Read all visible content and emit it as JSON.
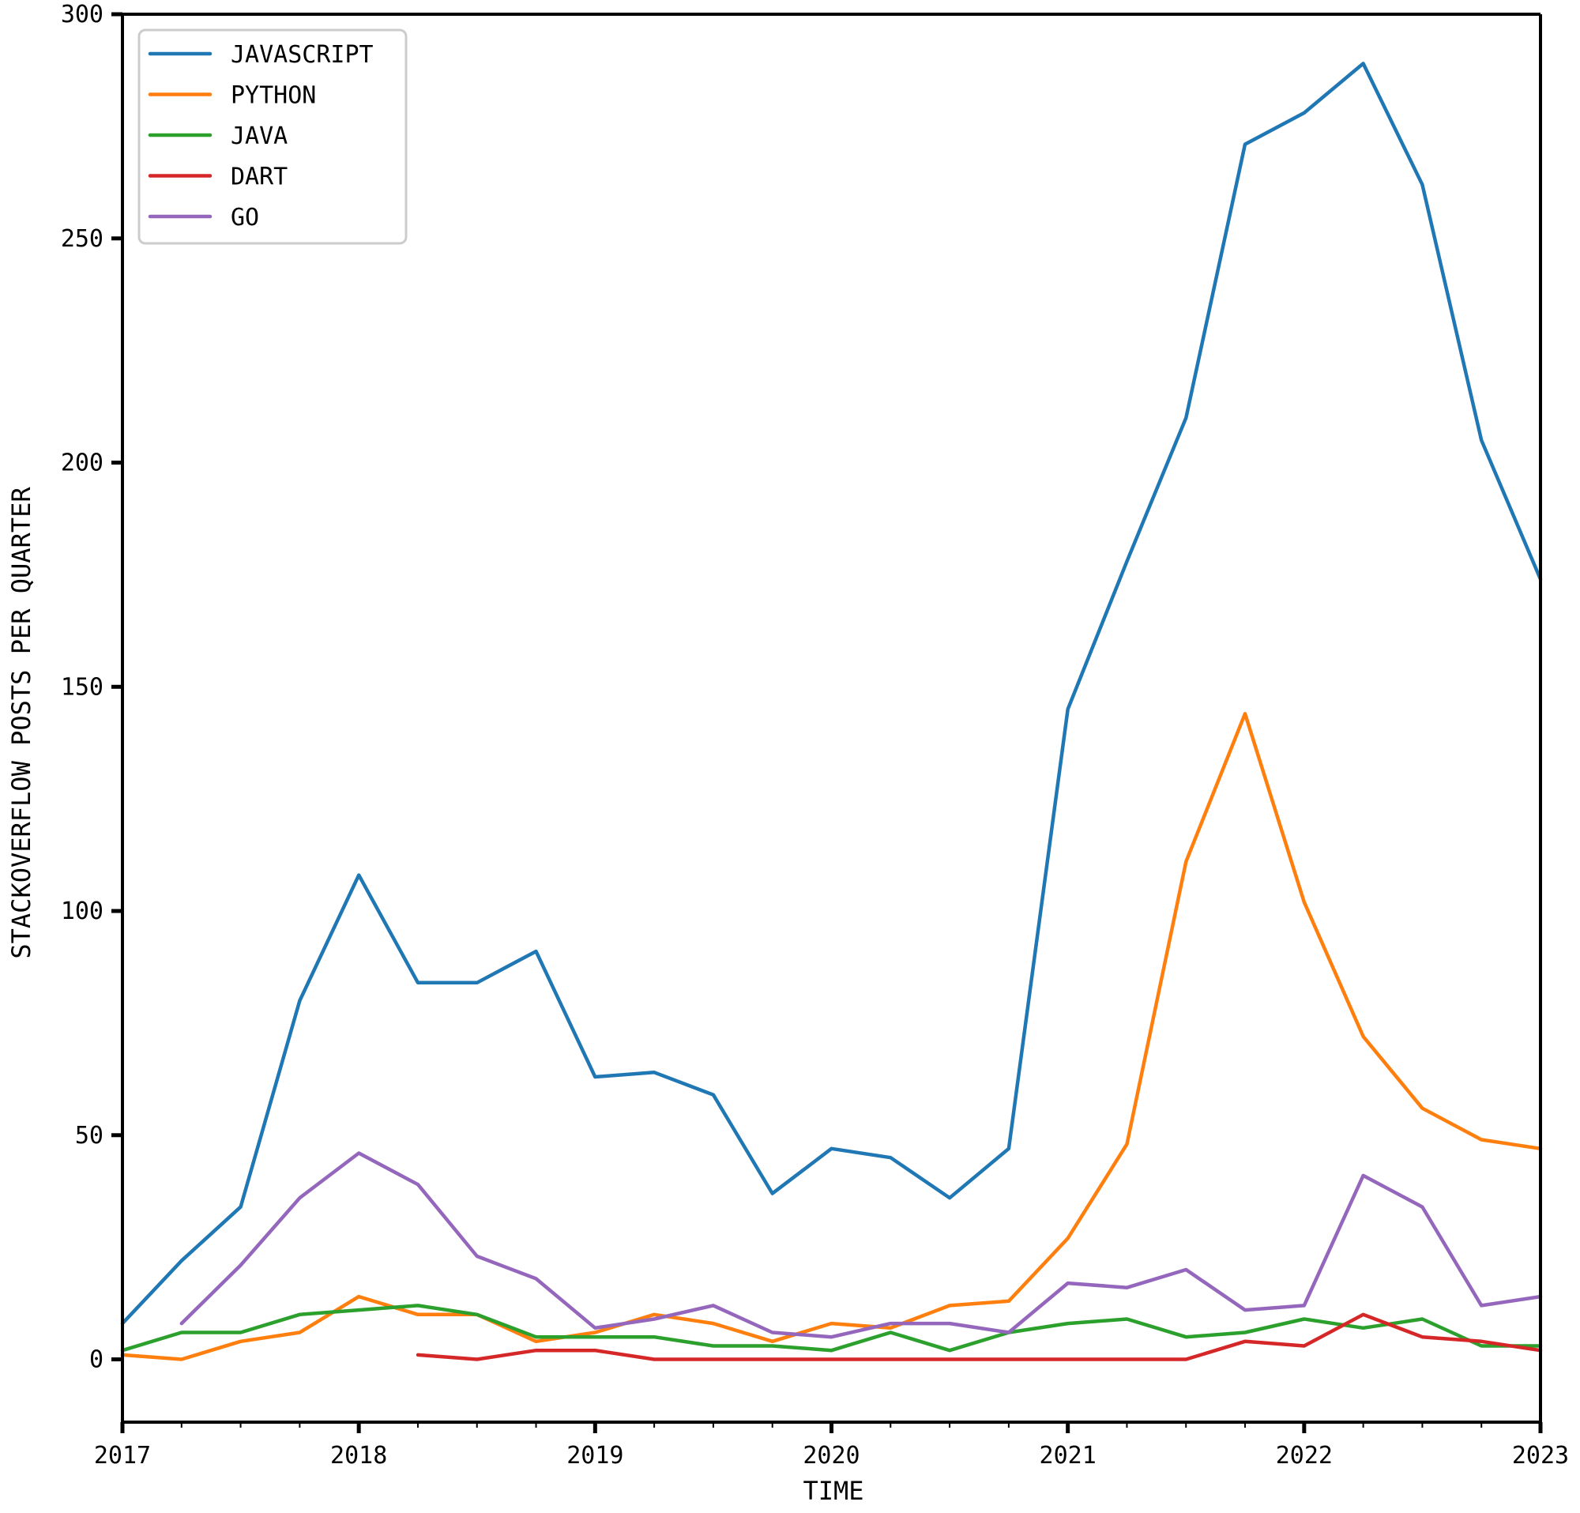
{
  "chart_data": {
    "type": "line",
    "title": "",
    "xlabel": "TIME",
    "ylabel": "STACKOVERFLOW POSTS PER QUARTER",
    "xlim": [
      2017,
      2023
    ],
    "ylim": [
      -14,
      300
    ],
    "x_ticks": [
      2017,
      2018,
      2019,
      2020,
      2021,
      2022,
      2023
    ],
    "y_ticks": [
      0,
      50,
      100,
      150,
      200,
      250,
      300
    ],
    "grid": false,
    "legend_position": "top-left",
    "series": [
      {
        "name": "JAVASCRIPT",
        "color": "#1f77b4",
        "points": [
          [
            2017.0,
            8
          ],
          [
            2017.25,
            22
          ],
          [
            2017.5,
            34
          ],
          [
            2017.75,
            80
          ],
          [
            2018.0,
            108
          ],
          [
            2018.25,
            84
          ],
          [
            2018.5,
            84
          ],
          [
            2018.75,
            91
          ],
          [
            2019.0,
            63
          ],
          [
            2019.25,
            64
          ],
          [
            2019.5,
            59
          ],
          [
            2019.75,
            37
          ],
          [
            2020.0,
            47
          ],
          [
            2020.25,
            45
          ],
          [
            2020.5,
            36
          ],
          [
            2020.75,
            47
          ],
          [
            2021.0,
            145
          ],
          [
            2021.25,
            178
          ],
          [
            2021.5,
            210
          ],
          [
            2021.75,
            271
          ],
          [
            2022.0,
            278
          ],
          [
            2022.25,
            289
          ],
          [
            2022.5,
            262
          ],
          [
            2022.75,
            205
          ],
          [
            2023.0,
            174
          ]
        ]
      },
      {
        "name": "PYTHON",
        "color": "#ff7f0e",
        "points": [
          [
            2017.0,
            1
          ],
          [
            2017.25,
            0
          ],
          [
            2017.5,
            4
          ],
          [
            2017.75,
            6
          ],
          [
            2018.0,
            14
          ],
          [
            2018.25,
            10
          ],
          [
            2018.5,
            10
          ],
          [
            2018.75,
            4
          ],
          [
            2019.0,
            6
          ],
          [
            2019.25,
            10
          ],
          [
            2019.5,
            8
          ],
          [
            2019.75,
            4
          ],
          [
            2020.0,
            8
          ],
          [
            2020.25,
            7
          ],
          [
            2020.5,
            12
          ],
          [
            2020.75,
            13
          ],
          [
            2021.0,
            27
          ],
          [
            2021.25,
            48
          ],
          [
            2021.5,
            111
          ],
          [
            2021.75,
            144
          ],
          [
            2022.0,
            102
          ],
          [
            2022.25,
            72
          ],
          [
            2022.5,
            56
          ],
          [
            2022.75,
            49
          ],
          [
            2023.0,
            47
          ]
        ]
      },
      {
        "name": "JAVA",
        "color": "#2ca02c",
        "points": [
          [
            2017.0,
            2
          ],
          [
            2017.25,
            6
          ],
          [
            2017.5,
            6
          ],
          [
            2017.75,
            10
          ],
          [
            2018.0,
            11
          ],
          [
            2018.25,
            12
          ],
          [
            2018.5,
            10
          ],
          [
            2018.75,
            5
          ],
          [
            2019.0,
            5
          ],
          [
            2019.25,
            5
          ],
          [
            2019.5,
            3
          ],
          [
            2019.75,
            3
          ],
          [
            2020.0,
            2
          ],
          [
            2020.25,
            6
          ],
          [
            2020.5,
            2
          ],
          [
            2020.75,
            6
          ],
          [
            2021.0,
            8
          ],
          [
            2021.25,
            9
          ],
          [
            2021.5,
            5
          ],
          [
            2021.75,
            6
          ],
          [
            2022.0,
            9
          ],
          [
            2022.25,
            7
          ],
          [
            2022.5,
            9
          ],
          [
            2022.75,
            3
          ],
          [
            2023.0,
            3
          ]
        ]
      },
      {
        "name": "DART",
        "color": "#d62728",
        "points": [
          [
            2018.25,
            1
          ],
          [
            2018.5,
            0
          ],
          [
            2018.75,
            2
          ],
          [
            2019.0,
            2
          ],
          [
            2019.25,
            0
          ],
          [
            2019.5,
            0
          ],
          [
            2019.75,
            0
          ],
          [
            2020.0,
            0
          ],
          [
            2020.25,
            0
          ],
          [
            2020.5,
            0
          ],
          [
            2020.75,
            0
          ],
          [
            2021.0,
            0
          ],
          [
            2021.25,
            0
          ],
          [
            2021.5,
            0
          ],
          [
            2021.75,
            4
          ],
          [
            2022.0,
            3
          ],
          [
            2022.25,
            10
          ],
          [
            2022.5,
            5
          ],
          [
            2022.75,
            4
          ],
          [
            2023.0,
            2
          ]
        ]
      },
      {
        "name": "GO",
        "color": "#9467bd",
        "points": [
          [
            2017.25,
            8
          ],
          [
            2017.5,
            21
          ],
          [
            2017.75,
            36
          ],
          [
            2018.0,
            46
          ],
          [
            2018.25,
            39
          ],
          [
            2018.5,
            23
          ],
          [
            2018.75,
            18
          ],
          [
            2019.0,
            7
          ],
          [
            2019.25,
            9
          ],
          [
            2019.5,
            12
          ],
          [
            2019.75,
            6
          ],
          [
            2020.0,
            5
          ],
          [
            2020.25,
            8
          ],
          [
            2020.5,
            8
          ],
          [
            2020.75,
            6
          ],
          [
            2021.0,
            17
          ],
          [
            2021.25,
            16
          ],
          [
            2021.5,
            20
          ],
          [
            2021.75,
            11
          ],
          [
            2022.0,
            12
          ],
          [
            2022.25,
            41
          ],
          [
            2022.5,
            34
          ],
          [
            2022.75,
            12
          ],
          [
            2023.0,
            14
          ]
        ]
      }
    ]
  }
}
